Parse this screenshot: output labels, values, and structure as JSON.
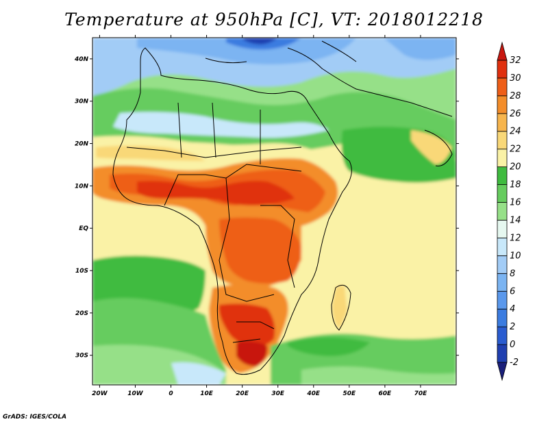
{
  "title": "Temperature at 950hPa [C], VT: 2018012218",
  "credit": "GrADS: IGES/COLA",
  "map": {
    "lon_range": [
      -22,
      80
    ],
    "lat_range": [
      -37,
      45
    ],
    "lon_ticks": [
      {
        "value": -20,
        "label": "20W"
      },
      {
        "value": -10,
        "label": "10W"
      },
      {
        "value": 0,
        "label": "0"
      },
      {
        "value": 10,
        "label": "10E"
      },
      {
        "value": 20,
        "label": "20E"
      },
      {
        "value": 30,
        "label": "30E"
      },
      {
        "value": 40,
        "label": "40E"
      },
      {
        "value": 50,
        "label": "50E"
      },
      {
        "value": 60,
        "label": "60E"
      },
      {
        "value": 70,
        "label": "70E"
      }
    ],
    "lat_ticks": [
      {
        "value": 40,
        "label": "40N"
      },
      {
        "value": 30,
        "label": "30N"
      },
      {
        "value": 20,
        "label": "20N"
      },
      {
        "value": 10,
        "label": "10N"
      },
      {
        "value": 0,
        "label": "EQ"
      },
      {
        "value": -10,
        "label": "10S"
      },
      {
        "value": -20,
        "label": "20S"
      },
      {
        "value": -30,
        "label": "30S"
      }
    ]
  },
  "colorbar": {
    "levels": [
      "-2",
      "0",
      "2",
      "4",
      "6",
      "8",
      "10",
      "12",
      "14",
      "16",
      "18",
      "20",
      "22",
      "24",
      "26",
      "28",
      "30",
      "32"
    ],
    "colors": [
      "#1a1f7a",
      "#1f3fb0",
      "#2a5cd0",
      "#3b7ce0",
      "#5a98ec",
      "#7bb4f2",
      "#a2ccf6",
      "#c8e8fa",
      "#e6f8f0",
      "#96e088",
      "#66cc5e",
      "#3fbb3f",
      "#faf2a6",
      "#f9d878",
      "#f7b54d",
      "#f38d2a",
      "#ee5e18",
      "#e0300f",
      "#c81810"
    ]
  }
}
